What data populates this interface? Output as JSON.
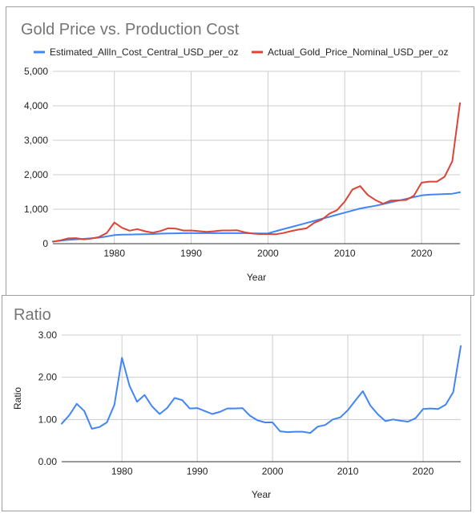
{
  "chart_data": [
    {
      "type": "line",
      "title": "Gold Price vs. Production Cost",
      "xlabel": "Year",
      "ylabel": "",
      "xlim": [
        1972,
        2025
      ],
      "ylim": [
        0,
        5000
      ],
      "x_ticks": [
        1980,
        1990,
        2000,
        2010,
        2020
      ],
      "y_ticks": [
        0,
        1000,
        2000,
        3000,
        4000,
        5000
      ],
      "y_tick_labels": [
        "0",
        "1,000",
        "2,000",
        "3,000",
        "4,000",
        "5,000"
      ],
      "grid": true,
      "legend_position": "top",
      "x": [
        1972,
        1973,
        1974,
        1975,
        1976,
        1977,
        1978,
        1979,
        1980,
        1981,
        1982,
        1983,
        1984,
        1985,
        1986,
        1987,
        1988,
        1989,
        1990,
        1991,
        1992,
        1993,
        1994,
        1995,
        1996,
        1997,
        1998,
        1999,
        2000,
        2001,
        2002,
        2003,
        2004,
        2005,
        2006,
        2007,
        2008,
        2009,
        2010,
        2011,
        2012,
        2013,
        2014,
        2015,
        2016,
        2017,
        2018,
        2019,
        2020,
        2021,
        2022,
        2023,
        2024,
        2025
      ],
      "series": [
        {
          "name": "Estimated_AllIn_Cost_Central_USD_per_oz",
          "color": "#4285f4",
          "values": [
            60,
            85,
            110,
            125,
            140,
            155,
            175,
            210,
            250,
            260,
            265,
            270,
            275,
            280,
            290,
            295,
            300,
            305,
            305,
            305,
            305,
            305,
            305,
            305,
            305,
            305,
            300,
            295,
            300,
            360,
            420,
            480,
            540,
            600,
            660,
            720,
            780,
            840,
            900,
            960,
            1020,
            1060,
            1100,
            1150,
            1200,
            1250,
            1300,
            1350,
            1400,
            1420,
            1430,
            1440,
            1450,
            1490
          ]
        },
        {
          "name": "Actual_Gold_Price_Nominal_USD_per_oz",
          "color": "#db4437",
          "values": [
            58,
            97,
            154,
            161,
            125,
            148,
            193,
            306,
            615,
            460,
            376,
            424,
            361,
            317,
            368,
            446,
            437,
            381,
            383,
            362,
            344,
            360,
            384,
            384,
            388,
            331,
            294,
            279,
            279,
            271,
            310,
            363,
            409,
            444,
            603,
            695,
            872,
            972,
            1224,
            1571,
            1669,
            1411,
            1266,
            1160,
            1251,
            1257,
            1268,
            1392,
            1770,
            1799,
            1800,
            1941,
            2390,
            4080
          ]
        }
      ]
    },
    {
      "type": "line",
      "title": "Ratio",
      "xlabel": "Year",
      "ylabel": "Ratio",
      "xlim": [
        1972,
        2025
      ],
      "ylim": [
        0,
        3
      ],
      "x_ticks": [
        1980,
        1990,
        2000,
        2010,
        2020
      ],
      "y_ticks": [
        0,
        1,
        2,
        3
      ],
      "y_tick_labels": [
        "0.00",
        "1.00",
        "2.00",
        "3.00"
      ],
      "grid": true,
      "x": [
        1972,
        1973,
        1974,
        1975,
        1976,
        1977,
        1978,
        1979,
        1980,
        1981,
        1982,
        1983,
        1984,
        1985,
        1986,
        1987,
        1988,
        1989,
        1990,
        1991,
        1992,
        1993,
        1994,
        1995,
        1996,
        1997,
        1998,
        1999,
        2000,
        2001,
        2002,
        2003,
        2004,
        2005,
        2006,
        2007,
        2008,
        2009,
        2010,
        2011,
        2012,
        2013,
        2014,
        2015,
        2016,
        2017,
        2018,
        2019,
        2020,
        2021,
        2022,
        2023,
        2024,
        2025
      ],
      "series": [
        {
          "color": "#4285f4",
          "values": [
            0.9,
            1.1,
            1.37,
            1.2,
            0.78,
            0.82,
            0.93,
            1.35,
            2.46,
            1.8,
            1.42,
            1.58,
            1.31,
            1.13,
            1.27,
            1.51,
            1.46,
            1.26,
            1.27,
            1.2,
            1.13,
            1.18,
            1.26,
            1.26,
            1.27,
            1.09,
            0.98,
            0.93,
            0.93,
            0.72,
            0.7,
            0.71,
            0.71,
            0.68,
            0.83,
            0.87,
            1.0,
            1.05,
            1.22,
            1.45,
            1.67,
            1.33,
            1.12,
            0.96,
            1.0,
            0.97,
            0.95,
            1.03,
            1.25,
            1.26,
            1.25,
            1.35,
            1.65,
            2.74
          ]
        }
      ]
    }
  ]
}
